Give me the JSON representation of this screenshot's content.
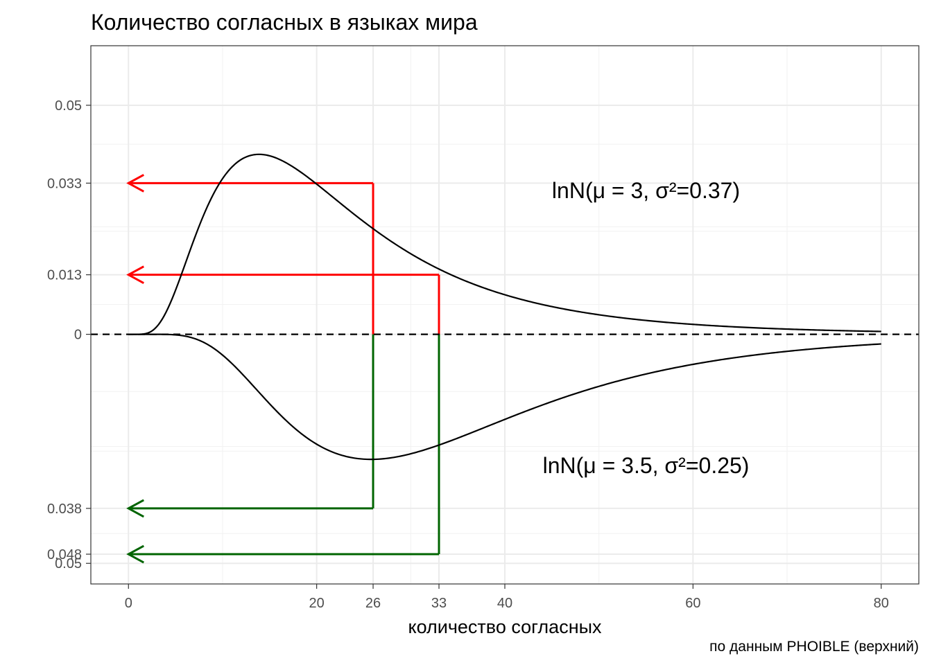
{
  "chart_data": {
    "type": "line",
    "title": "Количество согласных в языках мира",
    "xlabel": "количество согласных",
    "ylabel": "",
    "caption": "по данным PHOIBLE (верхний)",
    "xlim": [
      -4,
      84
    ],
    "ylim": [
      -0.0545,
      0.063
    ],
    "x_ticks": [
      {
        "value": 0,
        "label": "0"
      },
      {
        "value": 20,
        "label": "20"
      },
      {
        "value": 26,
        "label": "26"
      },
      {
        "value": 33,
        "label": "33"
      },
      {
        "value": 40,
        "label": "40"
      },
      {
        "value": 60,
        "label": "60"
      },
      {
        "value": 80,
        "label": "80"
      }
    ],
    "y_ticks": [
      {
        "value": 0.05,
        "label": "0.05"
      },
      {
        "value": 0.033,
        "label": "0.033"
      },
      {
        "value": 0.013,
        "label": "0.013"
      },
      {
        "value": 0,
        "label": "0"
      },
      {
        "value": -0.038,
        "label": "0.038"
      },
      {
        "value": -0.048,
        "label": "0.048"
      },
      {
        "value": -0.05,
        "label": "0.05"
      }
    ],
    "x_minor_grid": [
      10,
      30,
      50,
      70
    ],
    "y_minor_grid": [
      0.0415,
      0.0235,
      0.0225,
      0.0065,
      -0.0125,
      -0.0245,
      -0.0255,
      -0.0435
    ],
    "series": [
      {
        "name": "",
        "distribution": "lognormal",
        "mu": 3,
        "sigma2": 0.37,
        "direction": "up",
        "color": "#000000"
      },
      {
        "name": "",
        "distribution": "lognormal",
        "mu": 3.5,
        "sigma2": 0.25,
        "direction": "down",
        "color": "#000000"
      }
    ],
    "zero_line": {
      "value": 0,
      "style": "dashed",
      "color": "#000000"
    },
    "annotations": [
      {
        "text": "lnN(μ = 3, σ²=0.37)",
        "x": 55,
        "y": 0.0297
      },
      {
        "text": "lnN(μ = 3.5, σ²=0.25)",
        "x": 55,
        "y": -0.0303
      }
    ],
    "guides": [
      {
        "x": 26,
        "y": 0.033,
        "color": "#ff0000"
      },
      {
        "x": 33,
        "y": 0.013,
        "color": "#ff0000"
      },
      {
        "x": 26,
        "y": -0.038,
        "color": "#006400"
      },
      {
        "x": 33,
        "y": -0.048,
        "color": "#006400"
      }
    ],
    "grid": true,
    "legend": "none"
  }
}
